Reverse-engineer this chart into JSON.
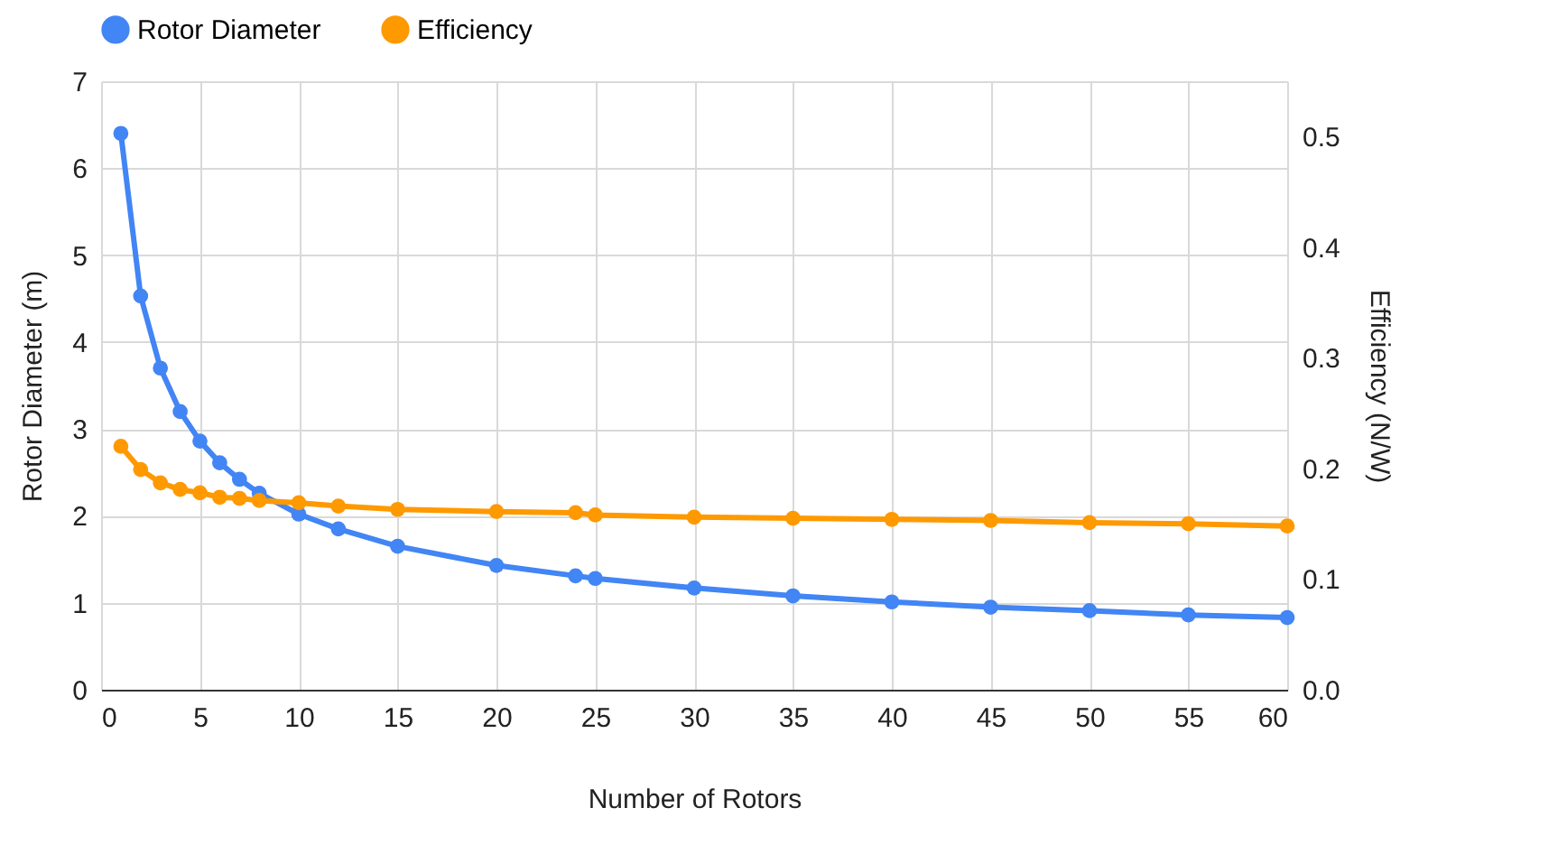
{
  "chart_data": {
    "type": "line",
    "xlabel": "Number of Rotors",
    "ylabel": "Rotor Diameter (m)",
    "y2label": "Efficiency (N/W)",
    "x": [
      1,
      2,
      3,
      4,
      5,
      6,
      7,
      8,
      10,
      12,
      15,
      20,
      24,
      25,
      30,
      35,
      40,
      45,
      50,
      55,
      60
    ],
    "series": [
      {
        "name": "Rotor Diameter",
        "color": "#4285f4",
        "values": [
          6.4,
          4.53,
          3.7,
          3.2,
          2.86,
          2.61,
          2.42,
          2.26,
          2.02,
          1.85,
          1.65,
          1.43,
          1.31,
          1.28,
          1.17,
          1.08,
          1.01,
          0.95,
          0.91,
          0.86,
          0.83
        ]
      },
      {
        "name": "Efficiency",
        "color": "#ff9900",
        "axis": "y2",
        "values": [
          0.22,
          0.199,
          0.187,
          0.181,
          0.178,
          0.174,
          0.173,
          0.171,
          0.169,
          0.166,
          0.163,
          0.161,
          0.16,
          0.158,
          0.156,
          0.155,
          0.154,
          0.153,
          0.151,
          0.15,
          0.148
        ]
      }
    ],
    "xlim": [
      0,
      60
    ],
    "xticks": [
      0,
      5,
      10,
      15,
      20,
      25,
      30,
      35,
      40,
      45,
      50,
      55,
      60
    ],
    "ylim": [
      0,
      7
    ],
    "yticks": [
      0,
      1,
      2,
      3,
      4,
      5,
      6,
      7
    ],
    "y2lim": [
      0,
      0.55
    ],
    "y2ticks": [
      {
        "value": 0,
        "label": "0.0"
      },
      0.1,
      0.2,
      0.3,
      0.4,
      0.5
    ],
    "grid": true,
    "legend": "top",
    "marker": "circle",
    "line_style": "solid"
  }
}
